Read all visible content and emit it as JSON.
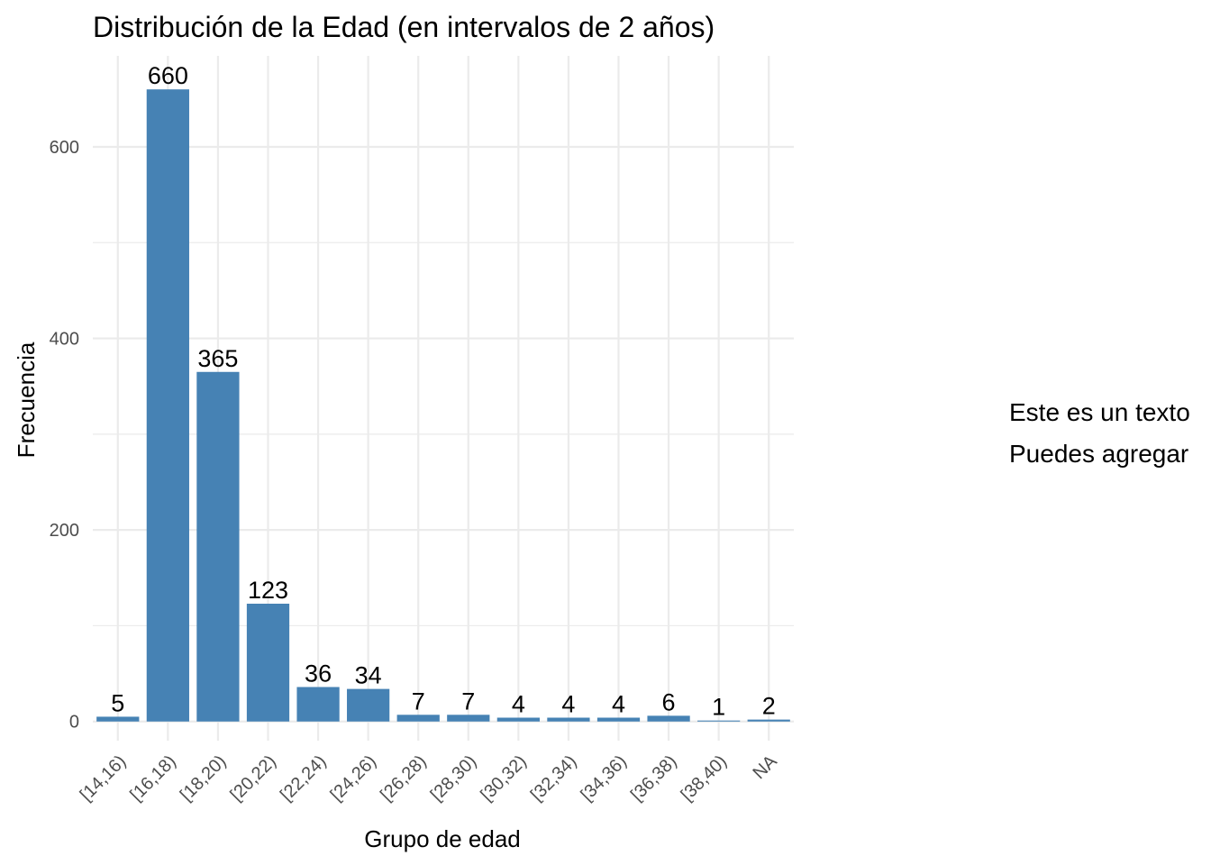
{
  "chart_data": {
    "type": "bar",
    "title": "Distribución de la Edad (en intervalos de 2 años)",
    "xlabel": "Grupo de edad",
    "ylabel": "Frecuencia",
    "categories": [
      "[14,16)",
      "[16,18)",
      "[18,20)",
      "[20,22)",
      "[22,24)",
      "[24,26)",
      "[26,28)",
      "[28,30)",
      "[30,32)",
      "[32,34)",
      "[34,36)",
      "[36,38)",
      "[38,40)",
      "NA"
    ],
    "values": [
      5,
      660,
      365,
      123,
      36,
      34,
      7,
      7,
      4,
      4,
      4,
      6,
      1,
      2
    ],
    "data_labels": [
      "5",
      "660",
      "365",
      "123",
      "36",
      "34",
      "7",
      "7",
      "4",
      "4",
      "4",
      "6",
      "1",
      "2"
    ],
    "ylim": [
      -20,
      695
    ],
    "y_ticks": [
      0,
      200,
      400,
      600
    ],
    "y_tick_labels": [
      "0",
      "200",
      "400",
      "600"
    ],
    "y_minor_ticks": [
      100,
      300,
      500
    ],
    "grid": true,
    "legend": "none",
    "bar_color": "#4682b4",
    "grid_color": "#ebebeb",
    "tick_label_color": "#4d4d4d"
  },
  "annotations": [
    "Este es un texto",
    "Puedes agregar"
  ]
}
